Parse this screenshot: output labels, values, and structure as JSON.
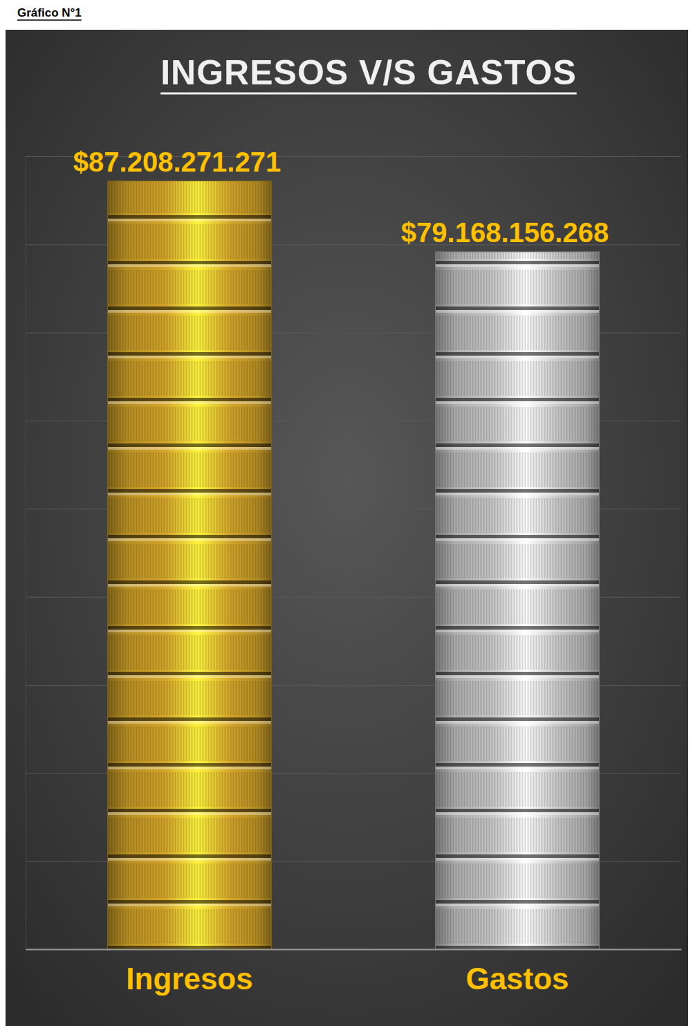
{
  "chart_data": {
    "type": "bar",
    "title": "INGRESOS V/S GASTOS",
    "annotations": [
      "Gráfico N°1"
    ],
    "categories": [
      "Ingresos",
      "Gastos"
    ],
    "values": [
      87208271271,
      79168156268
    ],
    "value_labels": [
      "$87.208.271.271",
      "$79.168.156.268"
    ],
    "colors": [
      "#d4a52a",
      "#c8c8c8"
    ],
    "data_labels": true,
    "tick_labels": "x",
    "ylim": [
      0,
      90000000000
    ],
    "yticks": [
      0,
      10000000000,
      20000000000,
      30000000000,
      40000000000,
      50000000000,
      60000000000,
      70000000000,
      80000000000,
      90000000000
    ],
    "grid": true
  }
}
